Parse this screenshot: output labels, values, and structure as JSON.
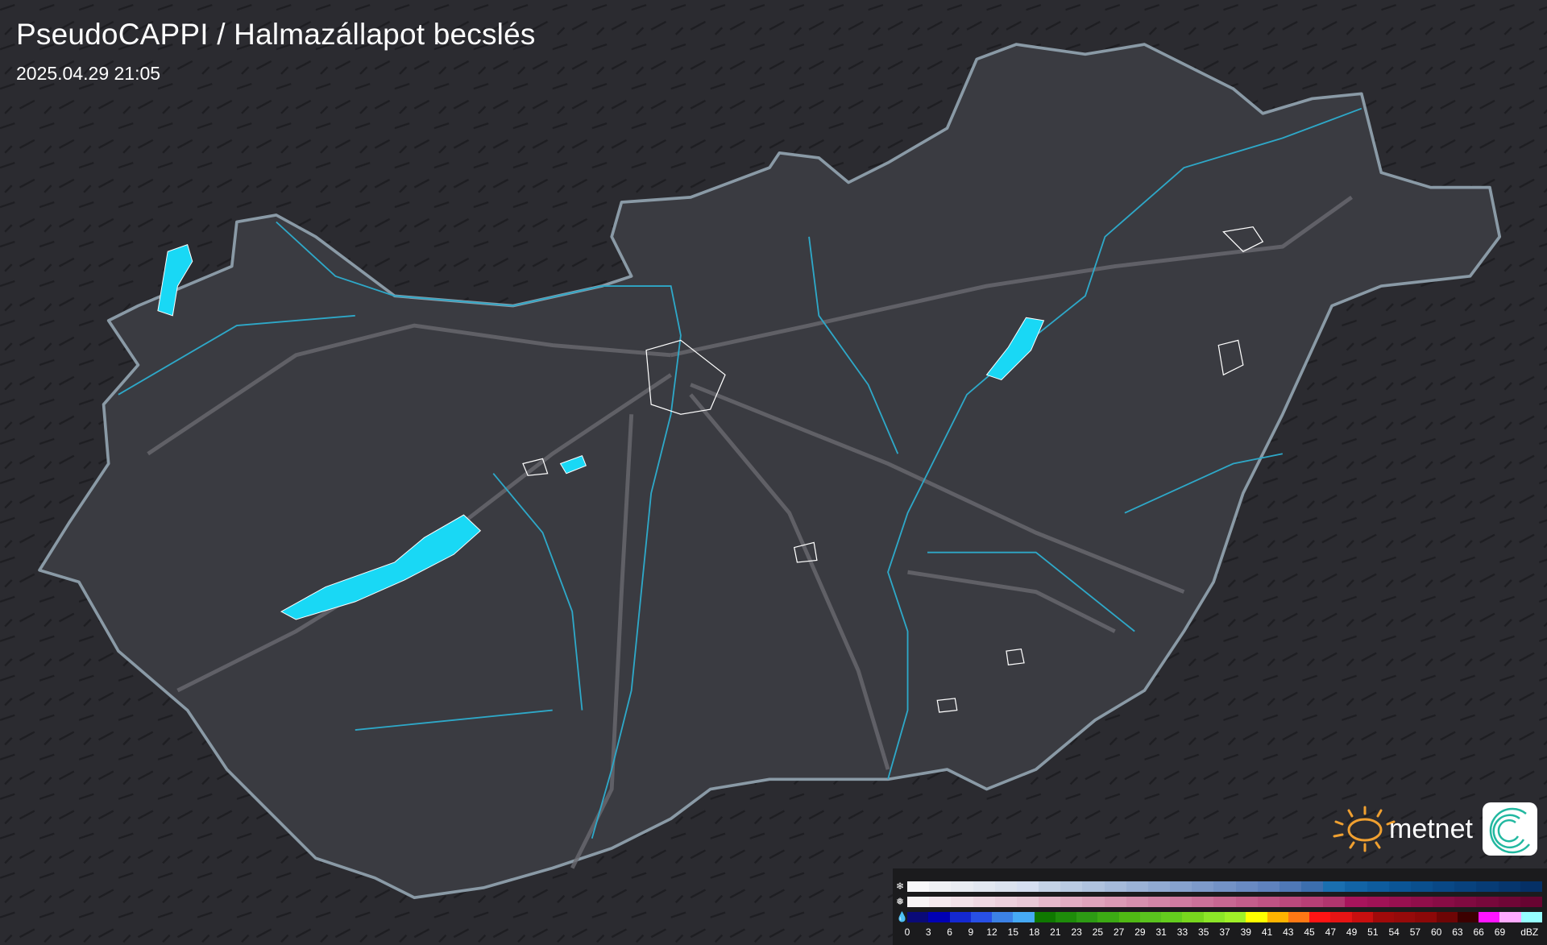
{
  "header": {
    "title": "PseudoCAPPI  / Halmazállapot becslés",
    "timestamp": "2025.04.29 21:05"
  },
  "map": {
    "country": "Hungary",
    "background_color": "#2a2a2e",
    "land_color": "#3a3b41",
    "border_color": "#8a9aa6",
    "river_color": "#2ea8c8",
    "lake_color": "#19d8f5",
    "road_color": "#6a6a70"
  },
  "logo": {
    "text": "metnet",
    "sun_color": "#f0a030"
  },
  "legend": {
    "icons": [
      "snowflake-icon",
      "mixed-icon",
      "raindrop-icon"
    ],
    "labels": [
      "0",
      "3",
      "6",
      "9",
      "12",
      "15",
      "18",
      "21",
      "23",
      "25",
      "27",
      "29",
      "31",
      "33",
      "35",
      "37",
      "39",
      "41",
      "43",
      "45",
      "47",
      "49",
      "51",
      "54",
      "57",
      "60",
      "63",
      "66",
      "69",
      "dBZ"
    ],
    "snow_colors": [
      "#f8f8fa",
      "#f0f1f5",
      "#e9ecf2",
      "#e2e7f0",
      "#dbe2ee",
      "#d5def0",
      "#c4d2e6",
      "#b9cae2",
      "#afc2de",
      "#a5bada",
      "#9bb2d6",
      "#91aad2",
      "#87a2ce",
      "#7d9aca",
      "#7392c6",
      "#698ac2",
      "#5f82be",
      "#4f78b6",
      "#3c6eae",
      "#1a6fb0",
      "#1264a6",
      "#0e5c9e",
      "#0b5596",
      "#0a4f8e",
      "#094886",
      "#08427e",
      "#073c76",
      "#06366e",
      "#053066"
    ],
    "mixed_colors": [
      "#f8f4f6",
      "#f5eaef",
      "#f2e1e8",
      "#efd8e2",
      "#ecd0dc",
      "#e9c8d6",
      "#e6b8cb",
      "#e2adc3",
      "#dfa3bc",
      "#db99b5",
      "#d78fae",
      "#d385a7",
      "#cf7ba0",
      "#cb7199",
      "#c76792",
      "#c35d8b",
      "#bf5384",
      "#bb497d",
      "#b73f76",
      "#b0356e",
      "#a8145c",
      "#a01256",
      "#981050",
      "#900e4a",
      "#880c45",
      "#800a40",
      "#78083b",
      "#700636",
      "#680431"
    ],
    "rain_colors": [
      "#0a0a78",
      "#0000b4",
      "#1428d2",
      "#2850e6",
      "#3c82e6",
      "#46aaf5",
      "#0f7800",
      "#1e8c0a",
      "#2d9b14",
      "#3caa14",
      "#50b914",
      "#5ac31e",
      "#64cd1e",
      "#78d71e",
      "#8ce628",
      "#a0f028",
      "#ffff00",
      "#ffb400",
      "#ff7814",
      "#ff1414",
      "#e61414",
      "#c80f0f",
      "#a00a0a",
      "#960a0a",
      "#8c0808",
      "#6e0505",
      "#3c0000",
      "#ff14ff",
      "#ffaaff",
      "#96ffff"
    ]
  }
}
